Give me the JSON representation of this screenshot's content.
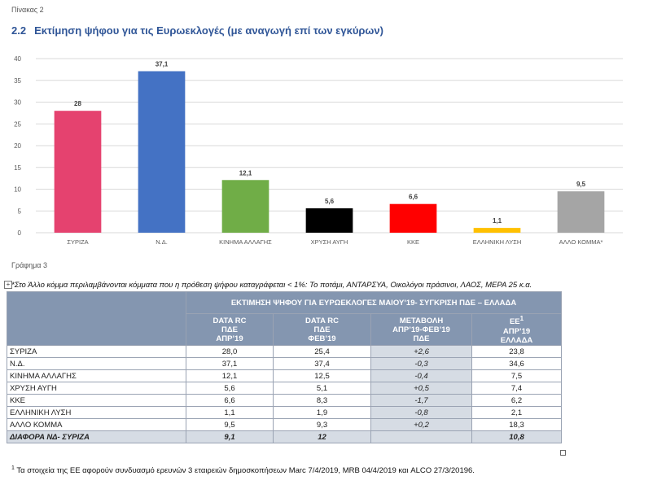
{
  "header": {
    "table_label": "Πίνακας 2",
    "section_number": "2.2",
    "section_title": "Εκτίμηση ψήφου για τις Ευρωεκλογές (με αναγωγή επί των εγκύρων)"
  },
  "chart_data": {
    "type": "bar",
    "categories": [
      "ΣΥΡΙΖΑ",
      "Ν.Δ.",
      "ΚΙΝΗΜΑ ΑΛΛΑΓΗΣ",
      "ΧΡΥΣΗ ΑΥΓΗ",
      "ΚΚΕ",
      "ΕΛΛΗΝΙΚΗ ΛΥΣΗ",
      "ΑΛΛΟ ΚΟΜΜΑ*"
    ],
    "values": [
      28,
      37.1,
      12.1,
      5.6,
      6.6,
      1.1,
      9.5
    ],
    "value_labels": [
      "28",
      "37,1",
      "12,1",
      "5,6",
      "6,6",
      "1,1",
      "9,5"
    ],
    "colors": [
      "#e5426f",
      "#4472c4",
      "#70ad47",
      "#000000",
      "#ff0000",
      "#ffc000",
      "#a5a5a5"
    ],
    "yticks": [
      "0",
      "5",
      "10",
      "15",
      "20",
      "25",
      "30",
      "35",
      "40"
    ],
    "ylim": [
      0,
      40
    ],
    "grid": true,
    "title": "",
    "xlabel": "",
    "ylabel": ""
  },
  "graph_label": "Γράφημα 3",
  "footnote_top": "*Στο Άλλο κόμμα περιλαμβάνονται κόμματα που η πρόθεση ψήφου καταγράφεται < 1%: Το ποτάμι, ΑΝΤΑΡΣΥΑ, Οικολόγοι πράσινοι, ΛΑΟΣ, ΜΕΡΑ 25 κ.α.",
  "table": {
    "main_header": "ΕΚΤΙΜΗΣΗ ΨΗΦΟΥ ΓΙΑ ΕΥΡΩΕΚΛΟΓΕΣ ΜΑΙΟΥ’19- ΣΥΓΚΡΙΣΗ ΠΔΕ – ΕΛΛΑΔΑ",
    "columns": [
      {
        "line1": "DATA RC",
        "line2": "ΠΔΕ",
        "line3": "ΑΠΡ’19"
      },
      {
        "line1": "DATA RC",
        "line2": "ΠΔΕ",
        "line3": "ΦΕΒ’19"
      },
      {
        "line1": "ΜΕΤΑΒΟΛΗ",
        "line2": "ΑΠΡ’19-ΦΕΒ’19",
        "line3": "ΠΔΕ"
      },
      {
        "line1": "ΕΕ",
        "line1_sup": "1",
        "line2": "ΑΠΡ’19",
        "line3": "ΕΛΛΑΔΑ"
      }
    ],
    "rows": [
      {
        "party": "ΣΥΡΙΖΑ",
        "apr": "28,0",
        "feb": "25,4",
        "change": "+2,6",
        "ee": "23,8"
      },
      {
        "party": "Ν.Δ.",
        "apr": "37,1",
        "feb": "37,4",
        "change": "-0,3",
        "ee": "34,6"
      },
      {
        "party": "ΚΙΝΗΜΑ ΑΛΛΑΓΗΣ",
        "apr": "12,1",
        "feb": "12,5",
        "change": "-0,4",
        "ee": "7,5"
      },
      {
        "party": "ΧΡΥΣΗ ΑΥΓΗ",
        "apr": "5,6",
        "feb": "5,1",
        "change": "+0,5",
        "ee": "7,4"
      },
      {
        "party": "ΚΚΕ",
        "apr": "6,6",
        "feb": "8,3",
        "change": "-1,7",
        "ee": "6,2"
      },
      {
        "party": "ΕΛΛΗΝΙΚΗ ΛΥΣΗ",
        "apr": "1,1",
        "feb": "1,9",
        "change": "-0,8",
        "ee": "2,1"
      },
      {
        "party": "ΑΛΛΟ ΚΟΜΜΑ",
        "apr": "9,5",
        "feb": "9,3",
        "change": "+0,2",
        "ee": "18,3"
      }
    ],
    "total": {
      "party": "ΔΙΑΦΟΡΑ ΝΔ- ΣΥΡΙΖΑ",
      "apr": "9,1",
      "feb": "12",
      "change": "",
      "ee": "10,8"
    }
  },
  "footnote_bottom": {
    "marker": "1",
    "text": " Τα στοιχεία της ΕΕ αφορούν συνδυασμό ερευνών 3 εταιρειών δημοσκοπήσεων Marc 7/4/2019, MRB 04/4/2019 και ALCO 27/3/20196."
  }
}
